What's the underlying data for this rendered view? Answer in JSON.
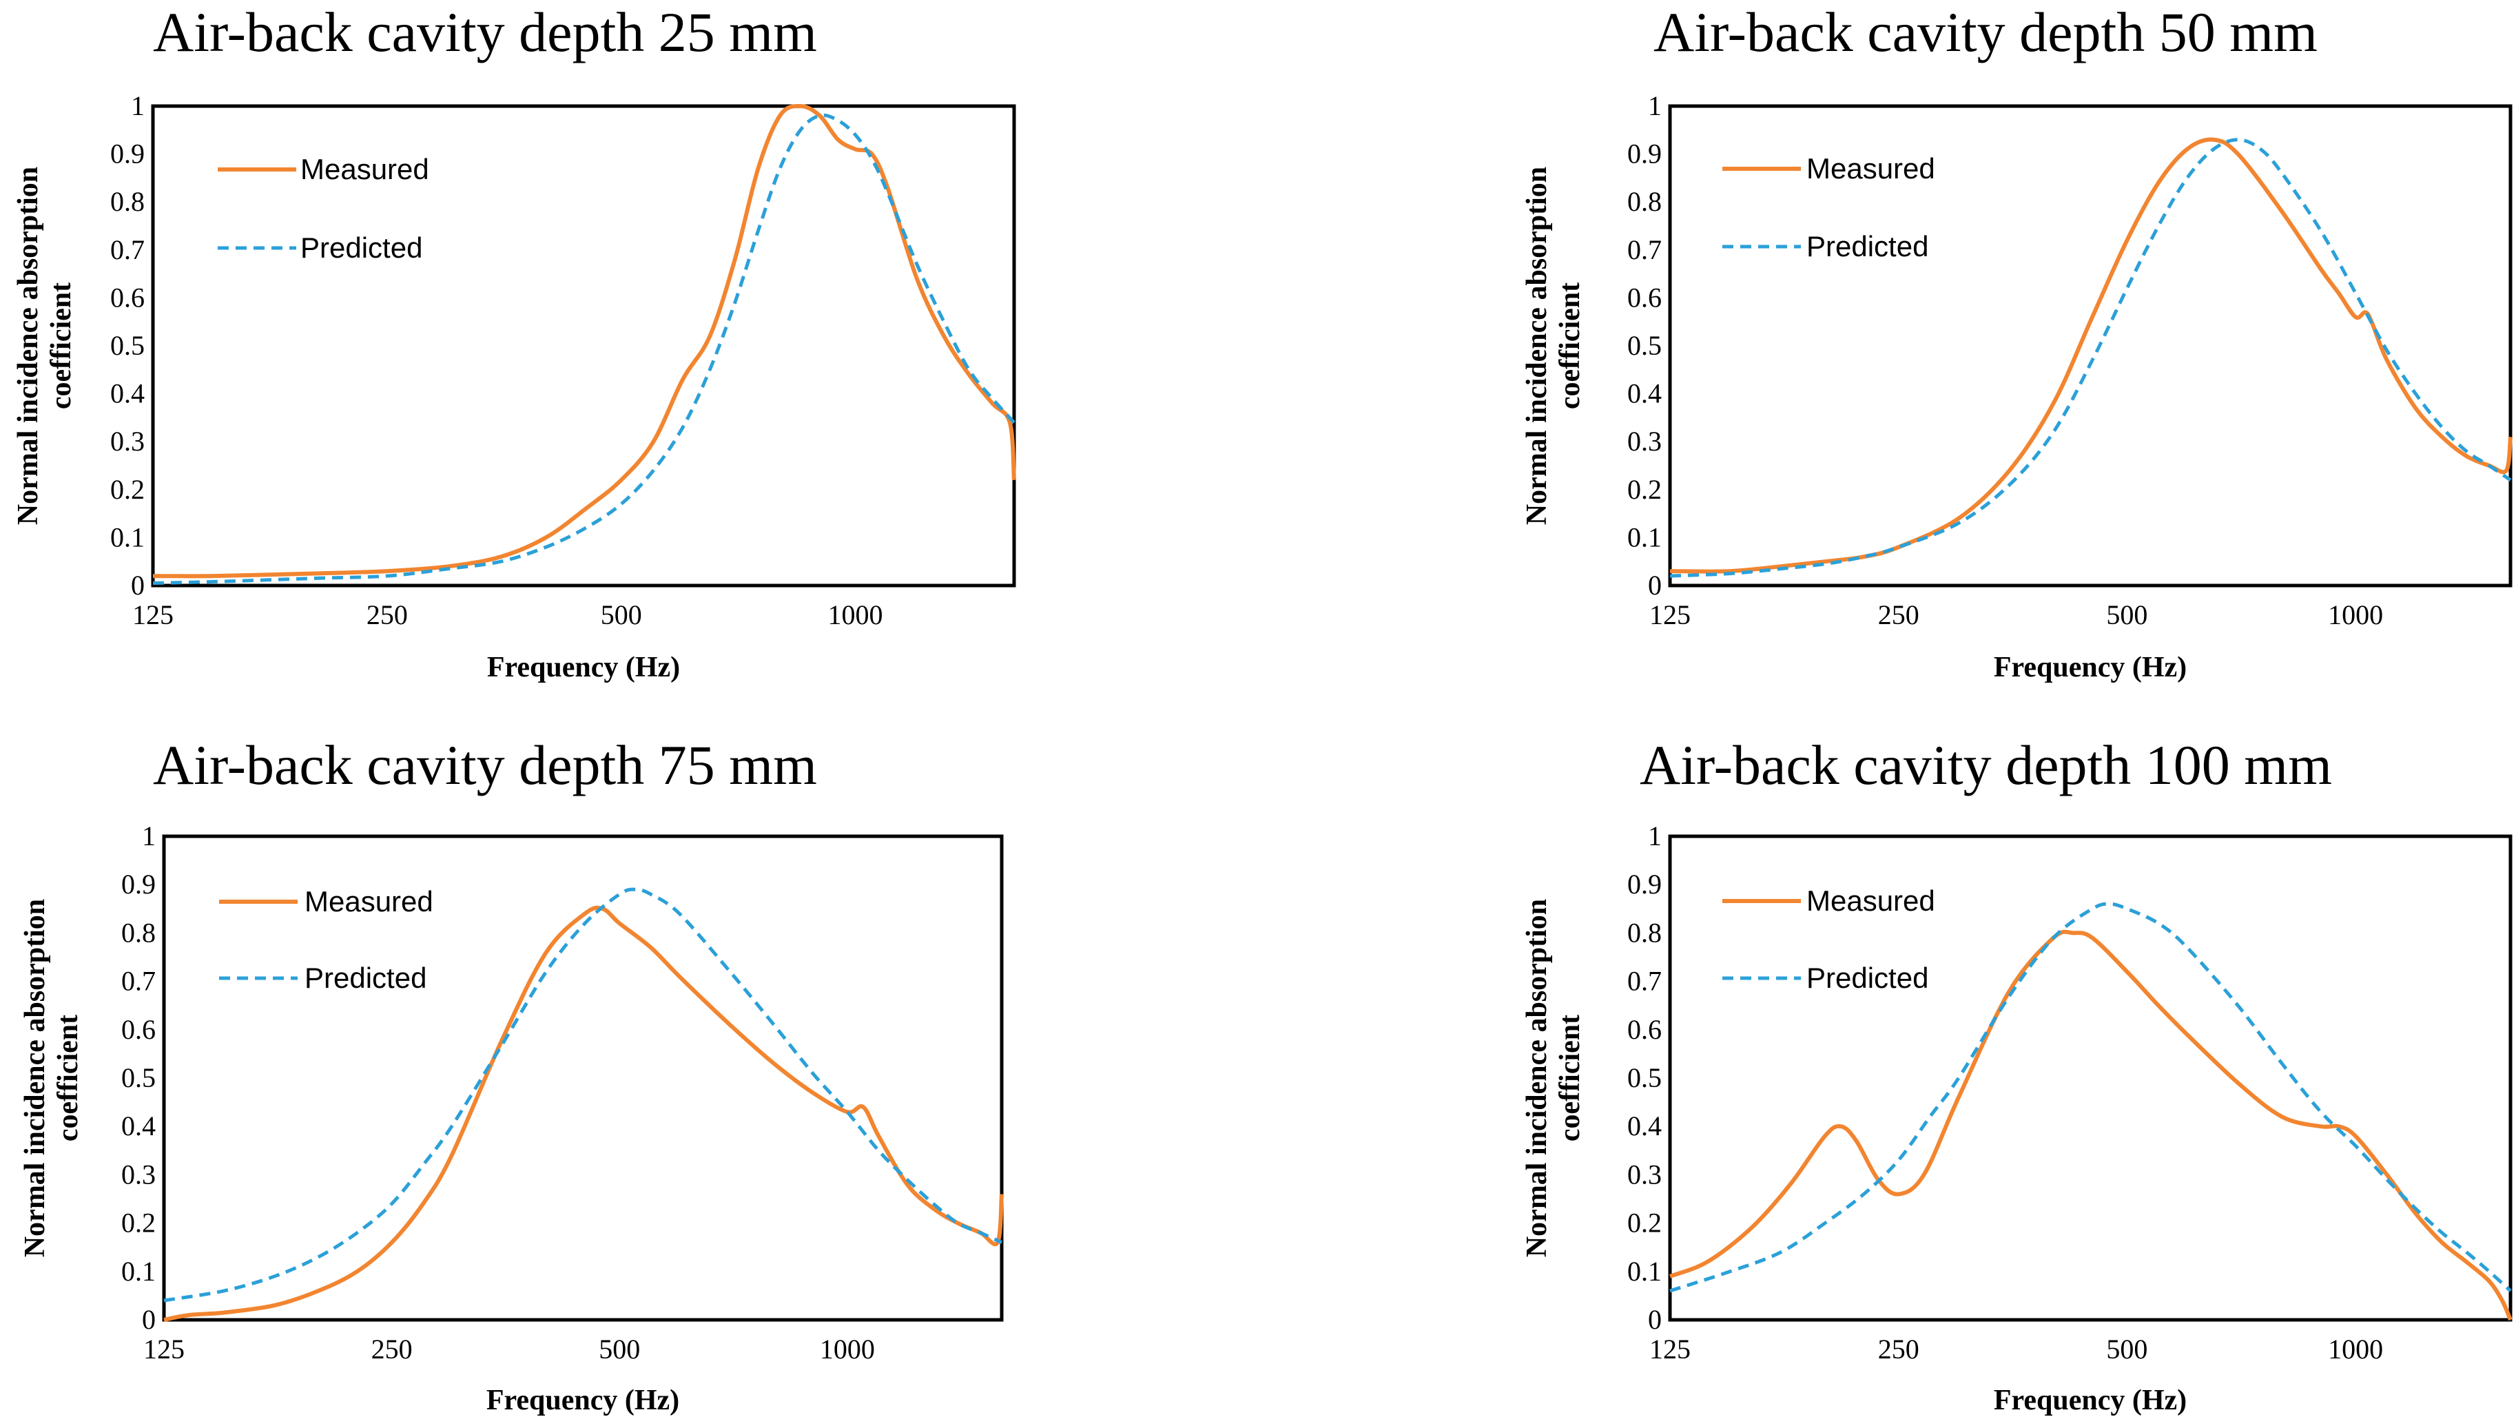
{
  "colors": {
    "measured": "#F28530",
    "predicted": "#2BA0D8",
    "axis": "#000000"
  },
  "chart_data": [
    {
      "type": "line",
      "title": "Air-back cavity depth 25 mm",
      "xlabel": "Frequency (Hz)",
      "ylabel_line1": "Normal incidence absorption",
      "ylabel_line2": "coefficient",
      "x_scale": "log",
      "xlim": [
        125,
        1600
      ],
      "ylim": [
        0,
        1
      ],
      "x_ticks": [
        125,
        250,
        500,
        1000
      ],
      "x_tick_labels": [
        "125",
        "250",
        "500",
        "1000"
      ],
      "y_ticks": [
        0,
        0.1,
        0.2,
        0.3,
        0.4,
        0.5,
        0.6,
        0.7,
        0.8,
        0.9,
        1
      ],
      "y_tick_labels": [
        "0",
        "0.1",
        "0.2",
        "0.3",
        "0.4",
        "0.5",
        "0.6",
        "0.7",
        "0.8",
        "0.9",
        "1"
      ],
      "legend": [
        "Measured",
        "Predicted"
      ],
      "series": [
        {
          "name": "Measured",
          "style": "solid",
          "x": [
            125,
            150,
            200,
            250,
            300,
            350,
            400,
            450,
            500,
            550,
            600,
            650,
            700,
            750,
            800,
            850,
            900,
            950,
            1000,
            1050,
            1100,
            1200,
            1300,
            1400,
            1500,
            1580,
            1600
          ],
          "y": [
            0.02,
            0.02,
            0.025,
            0.03,
            0.04,
            0.06,
            0.1,
            0.16,
            0.22,
            0.3,
            0.43,
            0.52,
            0.68,
            0.87,
            0.98,
            1.0,
            0.98,
            0.93,
            0.91,
            0.9,
            0.83,
            0.64,
            0.52,
            0.44,
            0.38,
            0.34,
            0.22
          ]
        },
        {
          "name": "Predicted",
          "style": "dashed",
          "x": [
            125,
            150,
            200,
            250,
            300,
            350,
            400,
            450,
            500,
            550,
            600,
            650,
            700,
            750,
            800,
            850,
            900,
            950,
            1000,
            1050,
            1100,
            1200,
            1300,
            1400,
            1500,
            1600
          ],
          "y": [
            0.005,
            0.008,
            0.015,
            0.02,
            0.035,
            0.05,
            0.08,
            0.12,
            0.17,
            0.24,
            0.33,
            0.45,
            0.59,
            0.74,
            0.87,
            0.95,
            0.98,
            0.97,
            0.94,
            0.89,
            0.82,
            0.67,
            0.55,
            0.45,
            0.39,
            0.34
          ]
        }
      ]
    },
    {
      "type": "line",
      "title": "Air-back cavity depth 50 mm",
      "xlabel": "Frequency (Hz)",
      "ylabel_line1": "Normal incidence absorption",
      "ylabel_line2": "coefficient",
      "x_scale": "log",
      "xlim": [
        125,
        1600
      ],
      "ylim": [
        0,
        1
      ],
      "x_ticks": [
        125,
        250,
        500,
        1000
      ],
      "x_tick_labels": [
        "125",
        "250",
        "500",
        "1000"
      ],
      "y_ticks": [
        0,
        0.1,
        0.2,
        0.3,
        0.4,
        0.5,
        0.6,
        0.7,
        0.8,
        0.9,
        1
      ],
      "y_tick_labels": [
        "0",
        "0.1",
        "0.2",
        "0.3",
        "0.4",
        "0.5",
        "0.6",
        "0.7",
        "0.8",
        "0.9",
        "1"
      ],
      "legend": [
        "Measured",
        "Predicted"
      ],
      "series": [
        {
          "name": "Measured",
          "style": "solid",
          "x": [
            125,
            150,
            175,
            200,
            225,
            250,
            300,
            350,
            400,
            450,
            500,
            550,
            600,
            650,
            700,
            800,
            900,
            950,
            1000,
            1030,
            1050,
            1100,
            1200,
            1300,
            1400,
            1500,
            1580,
            1600
          ],
          "y": [
            0.03,
            0.03,
            0.04,
            0.05,
            0.06,
            0.08,
            0.14,
            0.24,
            0.38,
            0.56,
            0.72,
            0.84,
            0.91,
            0.93,
            0.9,
            0.78,
            0.66,
            0.61,
            0.56,
            0.57,
            0.55,
            0.47,
            0.37,
            0.31,
            0.27,
            0.25,
            0.24,
            0.31
          ]
        },
        {
          "name": "Predicted",
          "style": "dashed",
          "x": [
            125,
            150,
            175,
            200,
            225,
            250,
            300,
            350,
            400,
            450,
            500,
            550,
            600,
            650,
            700,
            750,
            800,
            900,
            1000,
            1100,
            1200,
            1300,
            1400,
            1500,
            1600
          ],
          "y": [
            0.02,
            0.025,
            0.035,
            0.045,
            0.06,
            0.08,
            0.13,
            0.21,
            0.32,
            0.47,
            0.62,
            0.75,
            0.85,
            0.91,
            0.93,
            0.91,
            0.86,
            0.74,
            0.61,
            0.49,
            0.4,
            0.33,
            0.28,
            0.25,
            0.22
          ]
        }
      ]
    },
    {
      "type": "line",
      "title": "Air-back cavity depth 75 mm",
      "xlabel": "Frequency (Hz)",
      "ylabel_line1": "Normal incidence absorption",
      "ylabel_line2": "coefficient",
      "x_scale": "log",
      "xlim": [
        125,
        1600
      ],
      "ylim": [
        0,
        1
      ],
      "x_ticks": [
        125,
        250,
        500,
        1000
      ],
      "x_tick_labels": [
        "125",
        "250",
        "500",
        "1000"
      ],
      "y_ticks": [
        0,
        0.1,
        0.2,
        0.3,
        0.4,
        0.5,
        0.6,
        0.7,
        0.8,
        0.9,
        1
      ],
      "y_tick_labels": [
        "0",
        "0.1",
        "0.2",
        "0.3",
        "0.4",
        "0.5",
        "0.6",
        "0.7",
        "0.8",
        "0.9",
        "1"
      ],
      "legend": [
        "Measured",
        "Predicted"
      ],
      "series": [
        {
          "name": "Measured",
          "style": "solid",
          "x": [
            125,
            135,
            150,
            175,
            200,
            225,
            250,
            275,
            300,
            350,
            400,
            450,
            475,
            500,
            550,
            600,
            700,
            800,
            900,
            1000,
            1050,
            1100,
            1200,
            1300,
            1400,
            1500,
            1580,
            1600
          ],
          "y": [
            0.0,
            0.01,
            0.015,
            0.03,
            0.06,
            0.1,
            0.16,
            0.24,
            0.34,
            0.58,
            0.76,
            0.84,
            0.85,
            0.82,
            0.77,
            0.71,
            0.61,
            0.53,
            0.47,
            0.43,
            0.44,
            0.38,
            0.28,
            0.23,
            0.2,
            0.18,
            0.16,
            0.26
          ]
        },
        {
          "name": "Predicted",
          "style": "dashed",
          "x": [
            125,
            150,
            175,
            200,
            225,
            250,
            275,
            300,
            350,
            400,
            450,
            500,
            525,
            550,
            600,
            700,
            800,
            900,
            1000,
            1100,
            1200,
            1300,
            1400,
            1500,
            1600
          ],
          "y": [
            0.04,
            0.06,
            0.09,
            0.13,
            0.18,
            0.24,
            0.32,
            0.4,
            0.57,
            0.72,
            0.82,
            0.88,
            0.89,
            0.88,
            0.84,
            0.72,
            0.61,
            0.51,
            0.43,
            0.35,
            0.29,
            0.24,
            0.2,
            0.18,
            0.16
          ]
        }
      ]
    },
    {
      "type": "line",
      "title": "Air-back cavity depth 100 mm",
      "xlabel": "Frequency (Hz)",
      "ylabel_line1": "Normal incidence absorption",
      "ylabel_line2": "coefficient",
      "x_scale": "log",
      "xlim": [
        125,
        1600
      ],
      "ylim": [
        0,
        1
      ],
      "x_ticks": [
        125,
        250,
        500,
        1000
      ],
      "x_tick_labels": [
        "125",
        "250",
        "500",
        "1000"
      ],
      "y_ticks": [
        0,
        0.1,
        0.2,
        0.3,
        0.4,
        0.5,
        0.6,
        0.7,
        0.8,
        0.9,
        1
      ],
      "y_tick_labels": [
        "0",
        "0.1",
        "0.2",
        "0.3",
        "0.4",
        "0.5",
        "0.6",
        "0.7",
        "0.8",
        "0.9",
        "1"
      ],
      "legend": [
        "Measured",
        "Predicted"
      ],
      "series": [
        {
          "name": "Measured",
          "style": "solid",
          "x": [
            125,
            140,
            160,
            180,
            200,
            210,
            220,
            235,
            250,
            270,
            300,
            350,
            400,
            425,
            450,
            500,
            550,
            600,
            700,
            800,
            900,
            950,
            1000,
            1100,
            1200,
            1300,
            1400,
            1500,
            1560,
            1600
          ],
          "y": [
            0.09,
            0.12,
            0.19,
            0.28,
            0.38,
            0.4,
            0.37,
            0.29,
            0.26,
            0.3,
            0.46,
            0.68,
            0.79,
            0.8,
            0.79,
            0.72,
            0.65,
            0.59,
            0.49,
            0.42,
            0.4,
            0.4,
            0.38,
            0.3,
            0.22,
            0.16,
            0.12,
            0.08,
            0.04,
            0.0
          ]
        },
        {
          "name": "Predicted",
          "style": "dashed",
          "x": [
            125,
            150,
            175,
            200,
            225,
            250,
            275,
            300,
            350,
            400,
            450,
            475,
            500,
            550,
            600,
            700,
            800,
            900,
            1000,
            1100,
            1200,
            1300,
            1400,
            1500,
            1600
          ],
          "y": [
            0.06,
            0.1,
            0.14,
            0.2,
            0.26,
            0.33,
            0.42,
            0.5,
            0.67,
            0.79,
            0.85,
            0.86,
            0.85,
            0.82,
            0.77,
            0.65,
            0.53,
            0.43,
            0.36,
            0.29,
            0.23,
            0.18,
            0.14,
            0.1,
            0.06
          ]
        }
      ]
    }
  ]
}
